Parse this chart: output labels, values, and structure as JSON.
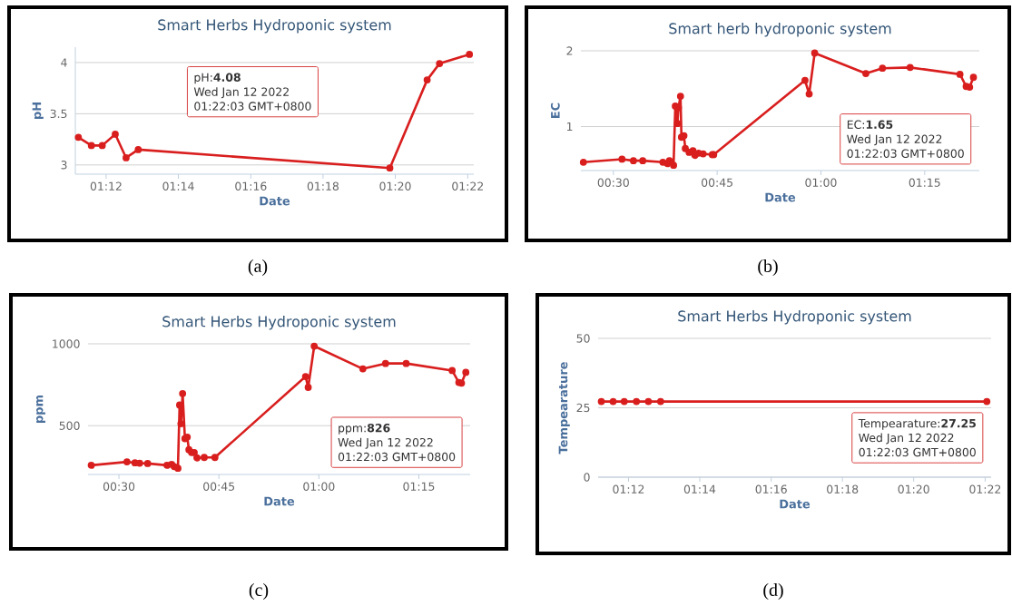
{
  "chart_data": [
    {
      "type": "line",
      "title": "Smart Herbs Hydroponic system",
      "xlabel": "Date",
      "ylabel": "pH",
      "color": "#d91e1e",
      "marker": "circle",
      "grid": "y",
      "x": [
        1.1872,
        1.1932,
        1.1982,
        1.2042,
        1.2092,
        1.2148,
        1.3308,
        1.348,
        1.3537,
        1.3675
      ],
      "values": [
        3.27,
        3.19,
        3.19,
        3.3,
        3.07,
        3.15,
        2.97,
        3.83,
        3.99,
        4.08
      ],
      "xlim": [
        1.1858,
        1.3695
      ],
      "ylim": [
        2.91,
        4.15
      ],
      "xticks": [
        {
          "value": 1.2,
          "label": "01:12"
        },
        {
          "value": 1.2333,
          "label": "01:14"
        },
        {
          "value": 1.2667,
          "label": "01:16"
        },
        {
          "value": 1.3,
          "label": "01:18"
        },
        {
          "value": 1.3333,
          "label": "01:20"
        },
        {
          "value": 1.3667,
          "label": "01:22"
        }
      ],
      "yticks": [
        3,
        3.5,
        4
      ],
      "annotations": [
        "pH:**4.08**",
        "Wed Jan 12 2022",
        "01:22:03 GMT+0800",
        "(a)"
      ]
    },
    {
      "type": "line",
      "title": "Smart herb hydroponic system",
      "xlabel": "Date",
      "ylabel": "EC",
      "color": "#d91e1e",
      "marker": "circle",
      "grid": "y",
      "x": [
        0.4277,
        0.5208,
        0.5483,
        0.5708,
        0.6193,
        0.63,
        0.635,
        0.645,
        0.6492,
        0.6543,
        0.6567,
        0.6617,
        0.664,
        0.67,
        0.6733,
        0.6825,
        0.6917,
        0.6962,
        0.705,
        0.7162,
        0.7383,
        0.7417,
        0.9617,
        0.9717,
        0.985,
        1.1083,
        1.1483,
        1.215,
        1.335,
        1.35,
        1.3583,
        1.3675
      ],
      "values": [
        0.53,
        0.57,
        0.55,
        0.55,
        0.53,
        0.51,
        0.55,
        0.49,
        1.27,
        1.04,
        1.25,
        1.4,
        0.86,
        0.88,
        0.71,
        0.66,
        0.68,
        0.62,
        0.65,
        0.64,
        0.63,
        0.63,
        1.61,
        1.43,
        1.97,
        1.7,
        1.77,
        1.78,
        1.69,
        1.53,
        1.52,
        1.65
      ],
      "xlim": [
        0.4217,
        1.3817
      ],
      "ylim": [
        0.42,
        2
      ],
      "xticks": [
        {
          "value": 0.5,
          "label": "00:30"
        },
        {
          "value": 0.75,
          "label": "00:45"
        },
        {
          "value": 1.0,
          "label": "01:00"
        },
        {
          "value": 1.25,
          "label": "01:15"
        }
      ],
      "yticks": [
        1,
        2
      ],
      "annotations": [
        "EC:**1.65**",
        "Wed Jan 12 2022",
        "01:22:03 GMT+0800",
        "(b)"
      ]
    },
    {
      "type": "line",
      "title": "Smart Herbs Hydroponic system",
      "xlabel": "Date",
      "ylabel": "ppm",
      "color": "#d91e1e",
      "marker": "circle",
      "grid": "y",
      "x": [
        0.4307,
        0.52,
        0.54,
        0.5517,
        0.5717,
        0.62,
        0.6317,
        0.6383,
        0.6475,
        0.6517,
        0.655,
        0.6592,
        0.665,
        0.6708,
        0.675,
        0.6817,
        0.6883,
        0.695,
        0.7133,
        0.74,
        0.9667,
        0.9733,
        0.9883,
        1.11,
        1.1667,
        1.2183,
        1.3333,
        1.35,
        1.3567,
        1.3675
      ],
      "values": [
        258,
        279,
        273,
        271,
        269,
        258,
        264,
        250,
        240,
        626,
        512,
        696,
        421,
        430,
        353,
        336,
        336,
        303,
        306,
        306,
        800,
        734,
        986,
        847,
        880,
        880,
        837,
        764,
        760,
        826
      ],
      "xlim": [
        0.4227,
        1.3783
      ],
      "ylim": [
        202,
        1000
      ],
      "xticks": [
        {
          "value": 0.5,
          "label": "00:30"
        },
        {
          "value": 0.75,
          "label": "00:45"
        },
        {
          "value": 1.0,
          "label": "01:00"
        },
        {
          "value": 1.25,
          "label": "01:15"
        }
      ],
      "yticks": [
        500,
        1000
      ],
      "annotations": [
        "ppm:**826**",
        "Wed Jan 12 2022",
        "01:22:03 GMT+0800",
        "(c)"
      ]
    },
    {
      "type": "line",
      "title": "Smart Herbs Hydroponic system",
      "xlabel": "Date",
      "ylabel": "Tempearature",
      "color": "#d91e1e",
      "marker": "circle",
      "grid": "y",
      "x": [
        1.1873,
        1.1928,
        1.198,
        1.2037,
        1.2093,
        1.215,
        1.3675
      ],
      "values": [
        27.25,
        27.25,
        27.25,
        27.25,
        27.25,
        27.25,
        27.25
      ],
      "xlim": [
        1.1858,
        1.3695
      ],
      "ylim": [
        0,
        50
      ],
      "xticks": [
        {
          "value": 1.2,
          "label": "01:12"
        },
        {
          "value": 1.2333,
          "label": "01:14"
        },
        {
          "value": 1.2667,
          "label": "01:16"
        },
        {
          "value": 1.3,
          "label": "01:18"
        },
        {
          "value": 1.3333,
          "label": "01:20"
        },
        {
          "value": 1.3667,
          "label": "01:22"
        }
      ],
      "yticks": [
        0,
        25,
        50
      ],
      "annotations": [
        "Tempearature:**27.25**",
        "Wed Jan 12 2022",
        "01:22:03 GMT+0800",
        "(d)"
      ]
    }
  ]
}
